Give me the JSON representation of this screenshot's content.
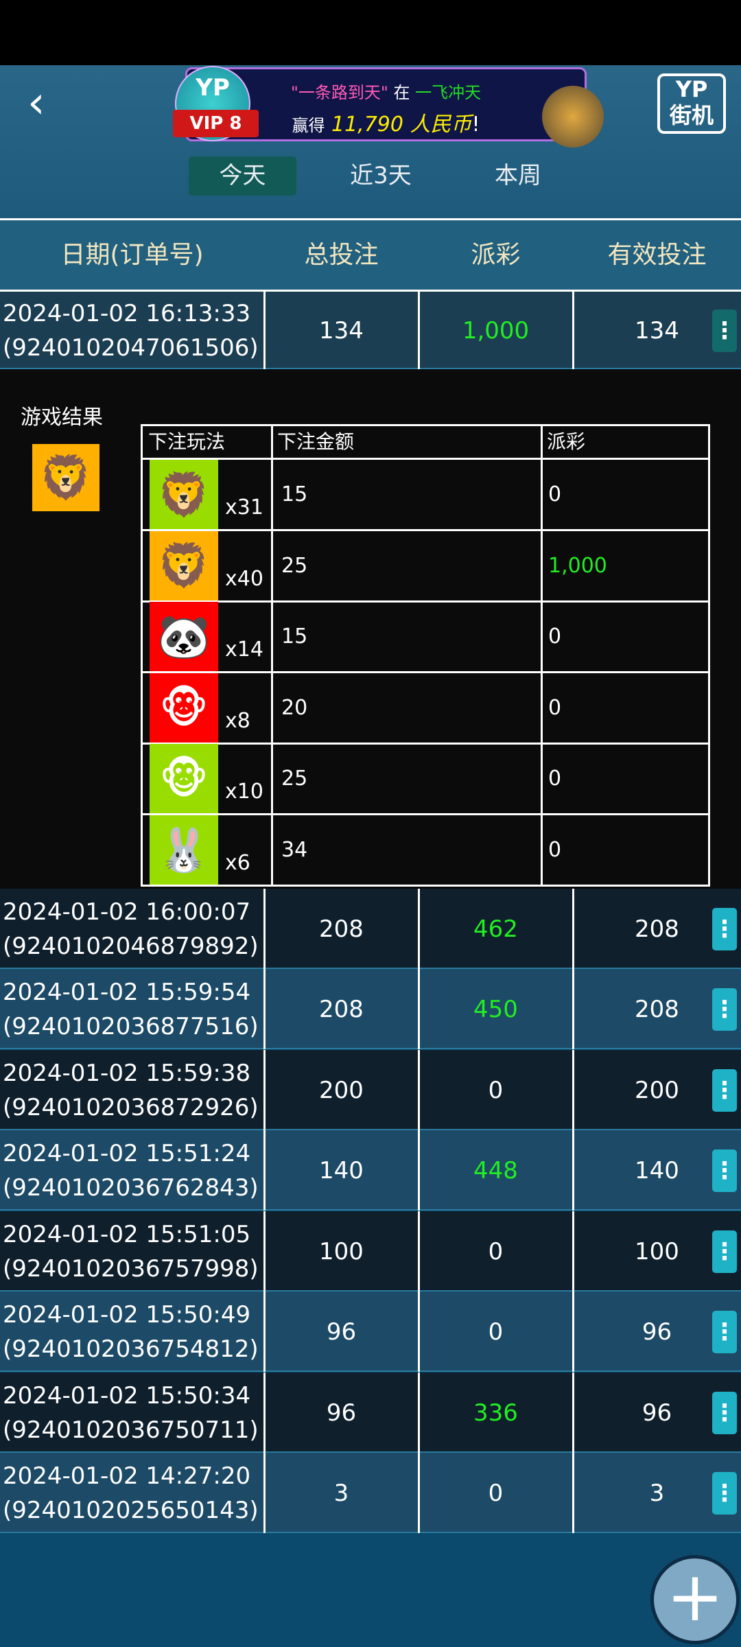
{
  "header": {
    "back_icon": "chevron-left-icon",
    "banner": {
      "quote": "\"一条路到天\"",
      "in": "在",
      "game": "一飞冲天",
      "won": "赢得",
      "amount": "11,790 人民币",
      "bang": "!"
    },
    "vip": {
      "brand": "YP",
      "level_label": "VIP 8"
    },
    "logo": {
      "line1": "YP",
      "line2": "街机"
    }
  },
  "tabs": [
    {
      "label": "今天",
      "active": true
    },
    {
      "label": "近3天",
      "active": false
    },
    {
      "label": "本周",
      "active": false
    }
  ],
  "table": {
    "columns": [
      "日期(订单号)",
      "总投注",
      "派彩",
      "有效投注"
    ],
    "rows": [
      {
        "date": "2024-01-02 16:13:33",
        "order": "(9240102047061506)",
        "total": "134",
        "payout": "1,000",
        "valid": "134",
        "payout_win": true,
        "expanded": true
      },
      {
        "date": "2024-01-02 16:00:07",
        "order": "(9240102046879892)",
        "total": "208",
        "payout": "462",
        "valid": "208",
        "payout_win": true
      },
      {
        "date": "2024-01-02 15:59:54",
        "order": "(9240102036877516)",
        "total": "208",
        "payout": "450",
        "valid": "208",
        "payout_win": true
      },
      {
        "date": "2024-01-02 15:59:38",
        "order": "(9240102036872926)",
        "total": "200",
        "payout": "0",
        "valid": "200",
        "payout_win": false
      },
      {
        "date": "2024-01-02 15:51:24",
        "order": "(9240102036762843)",
        "total": "140",
        "payout": "448",
        "valid": "140",
        "payout_win": true
      },
      {
        "date": "2024-01-02 15:51:05",
        "order": "(9240102036757998)",
        "total": "100",
        "payout": "0",
        "valid": "100",
        "payout_win": false
      },
      {
        "date": "2024-01-02 15:50:49",
        "order": "(9240102036754812)",
        "total": "96",
        "payout": "0",
        "valid": "96",
        "payout_win": false
      },
      {
        "date": "2024-01-02 15:50:34",
        "order": "(9240102036750711)",
        "total": "96",
        "payout": "336",
        "valid": "96",
        "payout_win": true
      },
      {
        "date": "2024-01-02 14:27:20",
        "order": "(9240102025650143)",
        "total": "3",
        "payout": "0",
        "valid": "3",
        "payout_win": false
      }
    ]
  },
  "detail": {
    "result_label": "游戏结果",
    "result_icon": {
      "animal": "lion",
      "bg": "#ffb000"
    },
    "columns": [
      "下注玩法",
      "下注金额",
      "派彩"
    ],
    "bets": [
      {
        "animal": "lion",
        "bg": "#99dd00",
        "multiplier": "x31",
        "amount": "15",
        "payout": "0",
        "win": false
      },
      {
        "animal": "lion",
        "bg": "#ffb000",
        "multiplier": "x40",
        "amount": "25",
        "payout": "1,000",
        "win": true
      },
      {
        "animal": "panda",
        "bg": "#ff0000",
        "multiplier": "x14",
        "amount": "15",
        "payout": "0",
        "win": false
      },
      {
        "animal": "monkey",
        "bg": "#ff0000",
        "multiplier": "x8",
        "amount": "20",
        "payout": "0",
        "win": false
      },
      {
        "animal": "monkey",
        "bg": "#99dd00",
        "multiplier": "x10",
        "amount": "25",
        "payout": "0",
        "win": false
      },
      {
        "animal": "rabbit",
        "bg": "#99dd00",
        "multiplier": "x6",
        "amount": "34",
        "payout": "0",
        "win": false
      }
    ]
  },
  "fab": {
    "icon": "plus-icon"
  },
  "colors": {
    "win": "#22ee22",
    "menu": "#1fb1c6",
    "header_text": "#f3e7c0"
  }
}
